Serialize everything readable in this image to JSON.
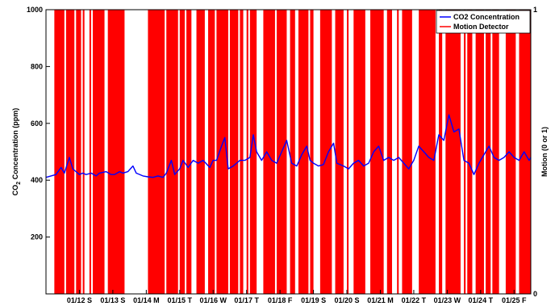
{
  "chart_data": {
    "type": "line",
    "title": "",
    "ylabel_left": {
      "main": "CO",
      "sub": "2",
      "rest": " Concentration (ppm)"
    },
    "ylabel_right": "Motion (0 or 1)",
    "xlabel": "",
    "ylim_left": [
      0,
      1000
    ],
    "ylim_right": [
      0,
      1
    ],
    "yticks_left": [
      "200",
      "400",
      "600",
      "800",
      "1000"
    ],
    "yticks_right": [
      "0",
      "1"
    ],
    "xlim": [
      0,
      14.5
    ],
    "grid": false,
    "legend_position": "top-right",
    "x_ticks": [
      {
        "x": 1,
        "label": "01/12 S"
      },
      {
        "x": 2,
        "label": "01/13 S"
      },
      {
        "x": 3,
        "label": "01/14 M"
      },
      {
        "x": 4,
        "label": "01/15 T"
      },
      {
        "x": 5,
        "label": "01/16 W"
      },
      {
        "x": 6,
        "label": "01/17 T"
      },
      {
        "x": 7,
        "label": "01/18 F"
      },
      {
        "x": 8,
        "label": "01/19 S"
      },
      {
        "x": 9,
        "label": "01/20 S"
      },
      {
        "x": 10,
        "label": "01/21 M"
      },
      {
        "x": 11,
        "label": "01/22 T"
      },
      {
        "x": 12,
        "label": "01/23 W"
      },
      {
        "x": 13,
        "label": "01/24 T"
      },
      {
        "x": 14,
        "label": "01/25 F"
      }
    ],
    "series": [
      {
        "name": "CO2 Concentration",
        "color": "#0000ff",
        "axis": "left",
        "points": [
          [
            0.0,
            410
          ],
          [
            0.15,
            415
          ],
          [
            0.3,
            420
          ],
          [
            0.45,
            445
          ],
          [
            0.55,
            425
          ],
          [
            0.7,
            480
          ],
          [
            0.8,
            440
          ],
          [
            0.9,
            430
          ],
          [
            1.0,
            420
          ],
          [
            1.1,
            425
          ],
          [
            1.2,
            420
          ],
          [
            1.35,
            425
          ],
          [
            1.5,
            415
          ],
          [
            1.6,
            425
          ],
          [
            1.8,
            430
          ],
          [
            1.95,
            420
          ],
          [
            2.05,
            420
          ],
          [
            2.2,
            430
          ],
          [
            2.3,
            425
          ],
          [
            2.45,
            430
          ],
          [
            2.6,
            450
          ],
          [
            2.7,
            425
          ],
          [
            2.9,
            415
          ],
          [
            3.05,
            412
          ],
          [
            3.2,
            410
          ],
          [
            3.35,
            415
          ],
          [
            3.5,
            410
          ],
          [
            3.6,
            425
          ],
          [
            3.75,
            470
          ],
          [
            3.85,
            420
          ],
          [
            4.0,
            440
          ],
          [
            4.1,
            470
          ],
          [
            4.25,
            445
          ],
          [
            4.4,
            470
          ],
          [
            4.55,
            460
          ],
          [
            4.7,
            470
          ],
          [
            4.9,
            445
          ],
          [
            5.0,
            470
          ],
          [
            5.1,
            470
          ],
          [
            5.25,
            520
          ],
          [
            5.35,
            550
          ],
          [
            5.45,
            440
          ],
          [
            5.6,
            450
          ],
          [
            5.8,
            470
          ],
          [
            5.95,
            470
          ],
          [
            6.1,
            480
          ],
          [
            6.2,
            560
          ],
          [
            6.3,
            500
          ],
          [
            6.45,
            470
          ],
          [
            6.6,
            500
          ],
          [
            6.75,
            470
          ],
          [
            6.9,
            460
          ],
          [
            7.05,
            500
          ],
          [
            7.2,
            540
          ],
          [
            7.35,
            460
          ],
          [
            7.5,
            450
          ],
          [
            7.65,
            490
          ],
          [
            7.8,
            520
          ],
          [
            7.9,
            470
          ],
          [
            8.0,
            460
          ],
          [
            8.15,
            450
          ],
          [
            8.3,
            455
          ],
          [
            8.45,
            500
          ],
          [
            8.6,
            530
          ],
          [
            8.7,
            460
          ],
          [
            8.9,
            450
          ],
          [
            9.05,
            440
          ],
          [
            9.2,
            460
          ],
          [
            9.35,
            470
          ],
          [
            9.5,
            450
          ],
          [
            9.65,
            460
          ],
          [
            9.8,
            500
          ],
          [
            9.95,
            520
          ],
          [
            10.1,
            470
          ],
          [
            10.25,
            480
          ],
          [
            10.4,
            470
          ],
          [
            10.55,
            480
          ],
          [
            10.7,
            460
          ],
          [
            10.85,
            440
          ],
          [
            11.0,
            470
          ],
          [
            11.15,
            520
          ],
          [
            11.3,
            500
          ],
          [
            11.45,
            480
          ],
          [
            11.6,
            470
          ],
          [
            11.75,
            560
          ],
          [
            11.9,
            540
          ],
          [
            12.05,
            630
          ],
          [
            12.2,
            570
          ],
          [
            12.35,
            580
          ],
          [
            12.5,
            470
          ],
          [
            12.65,
            460
          ],
          [
            12.8,
            420
          ],
          [
            12.95,
            460
          ],
          [
            13.1,
            490
          ],
          [
            13.25,
            520
          ],
          [
            13.4,
            480
          ],
          [
            13.55,
            470
          ],
          [
            13.7,
            480
          ],
          [
            13.85,
            500
          ],
          [
            14.0,
            480
          ],
          [
            14.15,
            470
          ],
          [
            14.3,
            500
          ],
          [
            14.45,
            470
          ],
          [
            14.5,
            480
          ]
        ]
      },
      {
        "name": "Motion Detector",
        "color": "#ff0000",
        "axis": "right",
        "active_intervals": [
          [
            0.25,
            0.55
          ],
          [
            0.6,
            0.85
          ],
          [
            0.9,
            1.05
          ],
          [
            1.1,
            1.15
          ],
          [
            1.3,
            1.35
          ],
          [
            1.4,
            1.75
          ],
          [
            1.85,
            2.35
          ],
          [
            3.05,
            3.55
          ],
          [
            3.6,
            3.95
          ],
          [
            4.0,
            4.15
          ],
          [
            4.2,
            4.35
          ],
          [
            4.5,
            4.75
          ],
          [
            4.85,
            5.05
          ],
          [
            5.1,
            5.45
          ],
          [
            5.5,
            5.75
          ],
          [
            5.8,
            5.9
          ],
          [
            6.0,
            6.05
          ],
          [
            6.1,
            6.3
          ],
          [
            6.5,
            6.85
          ],
          [
            6.9,
            7.2
          ],
          [
            7.3,
            7.45
          ],
          [
            7.55,
            7.85
          ],
          [
            7.9,
            8.0
          ],
          [
            8.2,
            8.55
          ],
          [
            8.65,
            8.9
          ],
          [
            9.0,
            9.05
          ],
          [
            9.2,
            9.55
          ],
          [
            9.7,
            10.1
          ],
          [
            10.2,
            10.35
          ],
          [
            10.5,
            10.55
          ],
          [
            10.65,
            10.95
          ],
          [
            11.15,
            11.65
          ],
          [
            11.75,
            11.85
          ],
          [
            11.95,
            12.4
          ],
          [
            12.5,
            12.55
          ],
          [
            12.6,
            12.75
          ],
          [
            12.85,
            13.1
          ],
          [
            13.15,
            13.3
          ],
          [
            13.35,
            13.55
          ],
          [
            13.75,
            14.05
          ],
          [
            14.15,
            14.5
          ]
        ]
      }
    ]
  }
}
